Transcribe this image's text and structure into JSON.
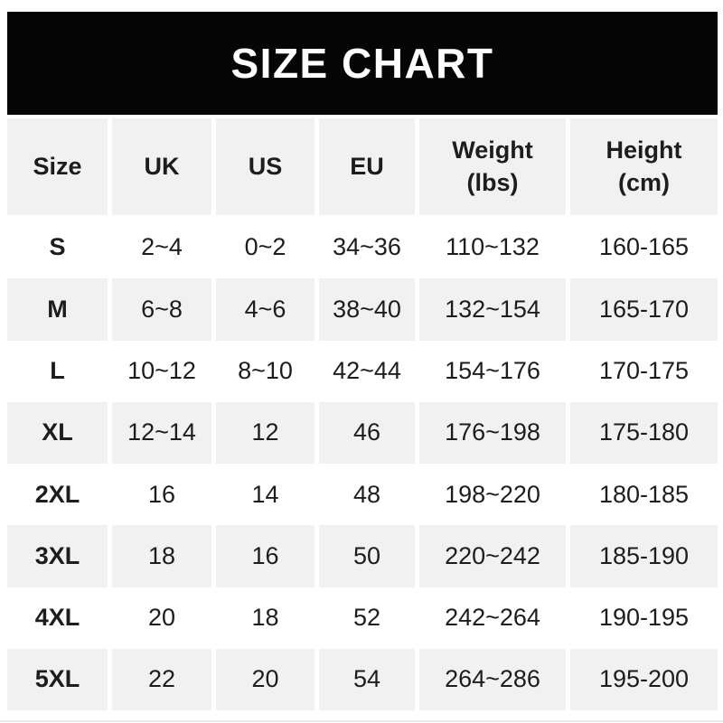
{
  "colors": {
    "page_bg": "#ffffff",
    "banner_bg": "#050505",
    "banner_text": "#ffffff",
    "cell_gray": "#f1f1f1",
    "text": "#1d1d1f",
    "bottom_divider": "#eaeaea"
  },
  "chart_data": {
    "type": "table",
    "title": "SIZE CHART",
    "columns": [
      "Size",
      "UK",
      "US",
      "EU",
      "Weight\n(lbs)",
      "Height\n(cm)"
    ],
    "rows": [
      [
        "S",
        "2~4",
        "0~2",
        "34~36",
        "110~132",
        "160-165"
      ],
      [
        "M",
        "6~8",
        "4~6",
        "38~40",
        "132~154",
        "165-170"
      ],
      [
        "L",
        "10~12",
        "8~10",
        "42~44",
        "154~176",
        "170-175"
      ],
      [
        "XL",
        "12~14",
        "12",
        "46",
        "176~198",
        "175-180"
      ],
      [
        "2XL",
        "16",
        "14",
        "48",
        "198~220",
        "180-185"
      ],
      [
        "3XL",
        "18",
        "16",
        "50",
        "220~242",
        "185-190"
      ],
      [
        "4XL",
        "20",
        "18",
        "52",
        "242~264",
        "190-195"
      ],
      [
        "5XL",
        "22",
        "20",
        "54",
        "264~286",
        "195-200"
      ]
    ]
  }
}
